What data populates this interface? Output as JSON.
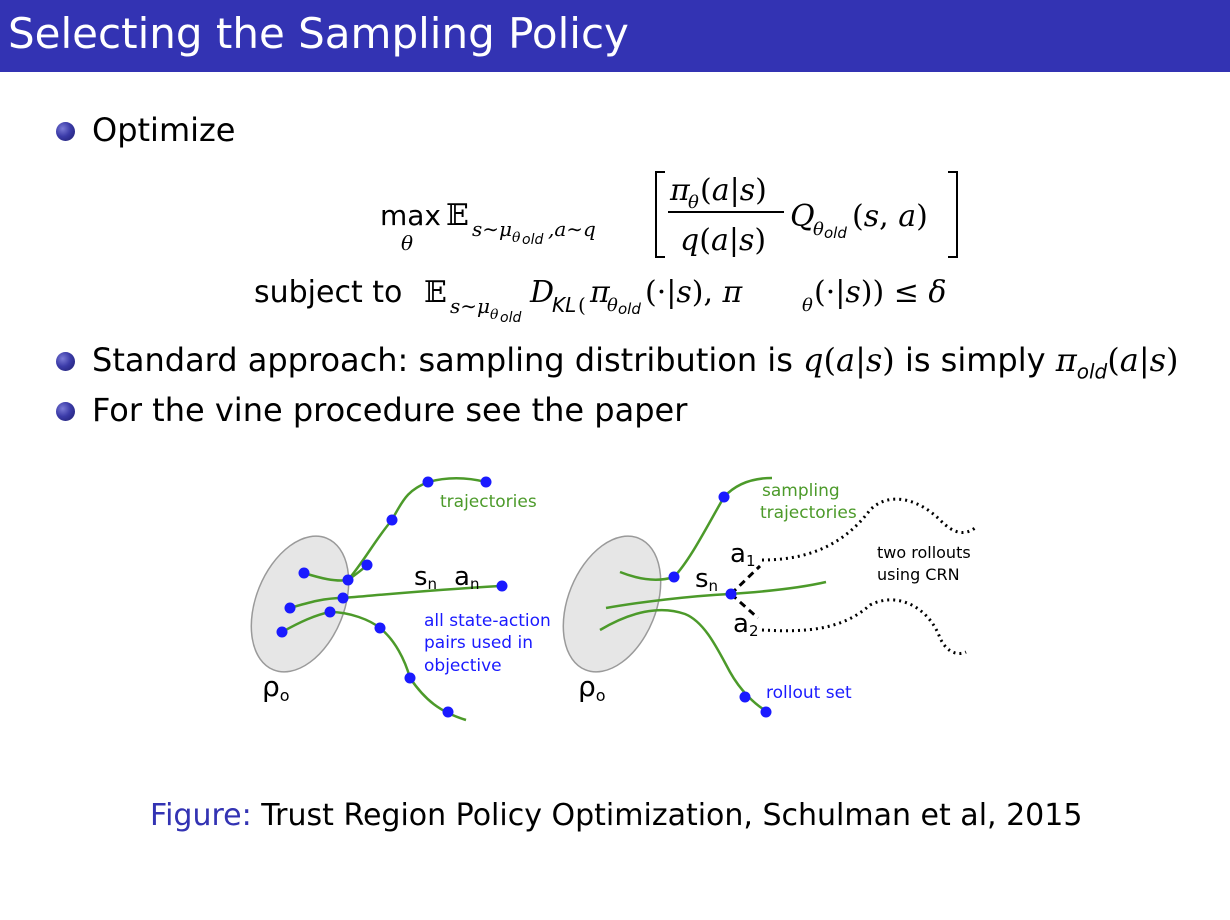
{
  "slide": {
    "title": "Selecting the Sampling Policy"
  },
  "bullets": [
    {
      "text": "Optimize"
    },
    {
      "text_before": "Standard approach: sampling distribution is ",
      "text_mid": " is simply "
    },
    {
      "text": "For the vine procedure see the paper"
    }
  ],
  "equation": {
    "max": "max",
    "theta": "θ",
    "subject_to": "subject to"
  },
  "figure": {
    "left": {
      "trajectories": "trajectories",
      "sn": "s",
      "sn_sub": "n",
      "an": "a",
      "an_sub": "n",
      "rho": "ρ",
      "rho_sub": "o",
      "pairs_line1": "all state-action",
      "pairs_line2": "pairs used in",
      "pairs_line3": "objective"
    },
    "right": {
      "sampling_line1": "sampling",
      "sampling_line2": "trajectories",
      "a1": "a",
      "a1_sub": "1",
      "a2": "a",
      "a2_sub": "2",
      "sn": "s",
      "sn_sub": "n",
      "rollouts_line1": "two rollouts",
      "rollouts_line2": "using CRN",
      "rollout_set": "rollout set",
      "rho": "ρ",
      "rho_sub": "o"
    },
    "colors": {
      "green": "#4c9a2a",
      "blue": "#1a1aff",
      "ellipse_fill": "#e6e6e6",
      "ellipse_stroke": "#9a9a9a"
    }
  },
  "caption": {
    "label": "Figure:",
    "text": " Trust Region Policy Optimization, Schulman et al, 2015"
  }
}
